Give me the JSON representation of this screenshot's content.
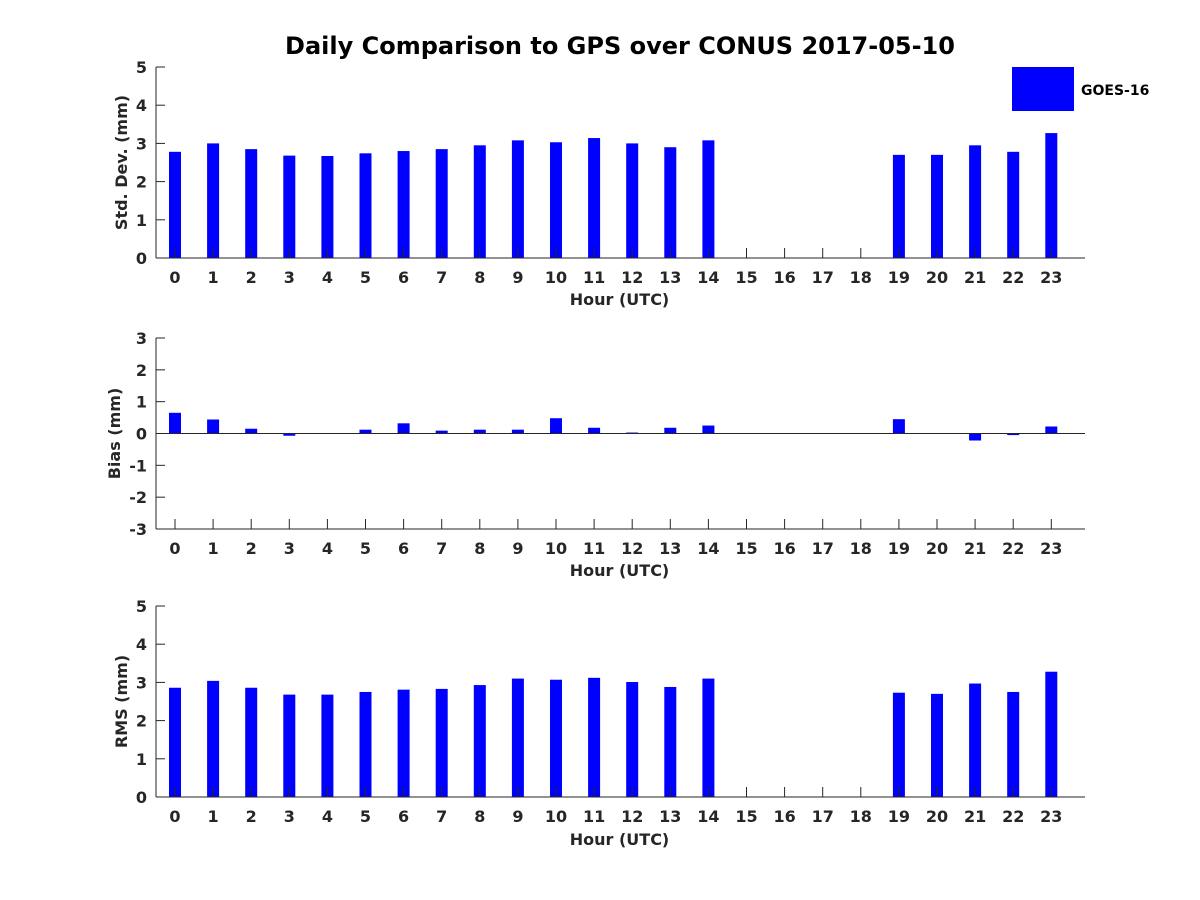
{
  "colors": {
    "bar": "#0000ff",
    "axis": "#262626"
  },
  "title": "Daily Comparison to GPS over CONUS 2017-05-10",
  "legend": {
    "label": "GOES-16",
    "placement": "top-right"
  },
  "chart_data": [
    {
      "type": "bar",
      "ylabel": "Std. Dev. (mm)",
      "xlabel": "Hour (UTC)",
      "ylim": [
        0,
        5
      ],
      "yticks": [
        "0",
        "1",
        "2",
        "3",
        "4",
        "5"
      ],
      "categories": [
        "0",
        "1",
        "2",
        "3",
        "4",
        "5",
        "6",
        "7",
        "8",
        "9",
        "10",
        "11",
        "12",
        "13",
        "14",
        "15",
        "16",
        "17",
        "18",
        "19",
        "20",
        "21",
        "22",
        "23"
      ],
      "series": [
        {
          "name": "GOES-16",
          "values": [
            2.78,
            3.0,
            2.85,
            2.68,
            2.67,
            2.74,
            2.8,
            2.85,
            2.95,
            3.08,
            3.03,
            3.14,
            3.0,
            2.9,
            3.08,
            null,
            null,
            null,
            null,
            2.7,
            2.7,
            2.95,
            2.78,
            3.27
          ]
        }
      ]
    },
    {
      "type": "bar",
      "ylabel": "Bias (mm)",
      "xlabel": "Hour (UTC)",
      "ylim": [
        -3,
        3
      ],
      "yticks": [
        "-3",
        "-2",
        "-1",
        "0",
        "1",
        "2",
        "3"
      ],
      "categories": [
        "0",
        "1",
        "2",
        "3",
        "4",
        "5",
        "6",
        "7",
        "8",
        "9",
        "10",
        "11",
        "12",
        "13",
        "14",
        "15",
        "16",
        "17",
        "18",
        "19",
        "20",
        "21",
        "22",
        "23"
      ],
      "series": [
        {
          "name": "GOES-16",
          "values": [
            0.65,
            0.44,
            0.15,
            -0.07,
            0.0,
            0.12,
            0.32,
            0.09,
            0.12,
            0.12,
            0.48,
            0.18,
            0.03,
            0.18,
            0.25,
            null,
            null,
            null,
            null,
            0.45,
            0.0,
            -0.22,
            -0.05,
            0.22
          ]
        }
      ]
    },
    {
      "type": "bar",
      "ylabel": "RMS (mm)",
      "xlabel": "Hour (UTC)",
      "ylim": [
        0,
        5
      ],
      "yticks": [
        "0",
        "1",
        "2",
        "3",
        "4",
        "5"
      ],
      "categories": [
        "0",
        "1",
        "2",
        "3",
        "4",
        "5",
        "6",
        "7",
        "8",
        "9",
        "10",
        "11",
        "12",
        "13",
        "14",
        "15",
        "16",
        "17",
        "18",
        "19",
        "20",
        "21",
        "22",
        "23"
      ],
      "series": [
        {
          "name": "GOES-16",
          "values": [
            2.86,
            3.04,
            2.86,
            2.68,
            2.68,
            2.75,
            2.81,
            2.83,
            2.93,
            3.1,
            3.07,
            3.12,
            3.01,
            2.88,
            3.1,
            null,
            null,
            null,
            null,
            2.73,
            2.7,
            2.97,
            2.75,
            3.28
          ]
        }
      ]
    }
  ]
}
